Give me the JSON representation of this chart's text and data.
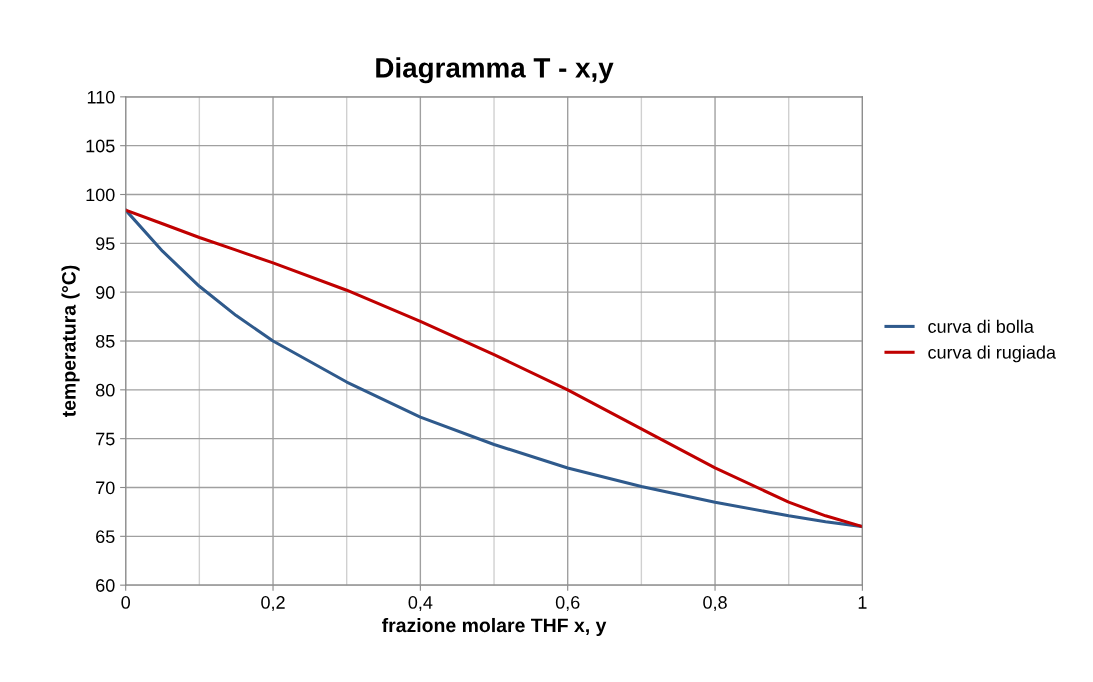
{
  "chart_data": {
    "type": "line",
    "title": "Diagramma T - x,y",
    "xlabel": "frazione molare THF x, y",
    "ylabel": "temperatura (°C)",
    "x": [
      0,
      0.05,
      0.1,
      0.15,
      0.2,
      0.3,
      0.4,
      0.5,
      0.6,
      0.7,
      0.8,
      0.9,
      0.95,
      1
    ],
    "series": [
      {
        "name": "curva di bolla",
        "color": "#2f5a8c",
        "values": [
          98.4,
          94.2,
          90.6,
          87.6,
          85,
          80.8,
          77.2,
          74.4,
          72,
          70.1,
          68.5,
          67.1,
          66.5,
          66
        ]
      },
      {
        "name": "curva di rugiada",
        "color": "#c00000",
        "values": [
          98.4,
          97,
          95.6,
          94.3,
          93,
          90.2,
          87,
          83.6,
          80,
          76,
          72,
          68.5,
          67.1,
          66
        ]
      }
    ],
    "xlim": [
      0,
      1
    ],
    "xticks": [
      {
        "value": 0,
        "label": "0"
      },
      {
        "value": 0.2,
        "label": "0,2"
      },
      {
        "value": 0.4,
        "label": "0,4"
      },
      {
        "value": 0.6,
        "label": "0,6"
      },
      {
        "value": 0.8,
        "label": "0,8"
      },
      {
        "value": 1,
        "label": "1"
      }
    ],
    "ylim": [
      60,
      110
    ],
    "yticks": [
      60,
      65,
      70,
      75,
      80,
      85,
      90,
      95,
      100,
      105,
      110
    ],
    "grid": true,
    "legend": "right",
    "marker": "none",
    "line_style": "solid"
  }
}
